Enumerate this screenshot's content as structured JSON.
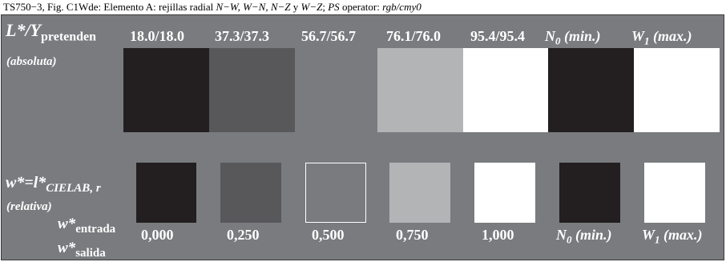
{
  "caption": {
    "lead": "TS750−3, Fig. C1Wde: Elemento A: rejillas radial ",
    "axes": "N−W, W−N, N−Z",
    "conj": " y ",
    "axis_last": "W−Z",
    "sep": "; ",
    "ps": "PS",
    "ps_label": " operator: ",
    "operator": "rgb/cmy0"
  },
  "top": {
    "label_main": "L*/Y",
    "label_sub": "pretenden",
    "row_label": "(absoluta)",
    "values": [
      "18.0/18.0",
      "37.3/37.3",
      "56.7/56.7",
      "76.1/76.0",
      "95.4/95.4"
    ],
    "n0_letter": "N",
    "n0_sub": "0",
    "n0_suffix": " (min.)",
    "w1_letter": "W",
    "w1_sub": "1",
    "w1_suffix": " (max.)",
    "swatch_colors": [
      "#231f20",
      "#58585b",
      "#797b7e",
      "#b3b4b6",
      "#ffffff",
      "#231f20",
      "#ffffff"
    ]
  },
  "bottom": {
    "label_main": "w*=l*",
    "label_sub": "CIELAB, r",
    "row_label": "(relativa)",
    "entrada_main": "w*",
    "entrada_sub": "entrada",
    "salida_main": "w*",
    "salida_sub": "salida",
    "values": [
      "0,000",
      "0,250",
      "0,500",
      "0,750",
      "1,000"
    ],
    "n0_letter": "N",
    "n0_sub": "0",
    "n0_suffix": " (min.)",
    "w1_letter": "W",
    "w1_sub": "1",
    "w1_suffix": " (max.)",
    "swatch_colors": [
      "#231f20",
      "#58585b",
      "#797b7e",
      "#b3b4b6",
      "#ffffff",
      "#231f20",
      "#ffffff"
    ]
  }
}
